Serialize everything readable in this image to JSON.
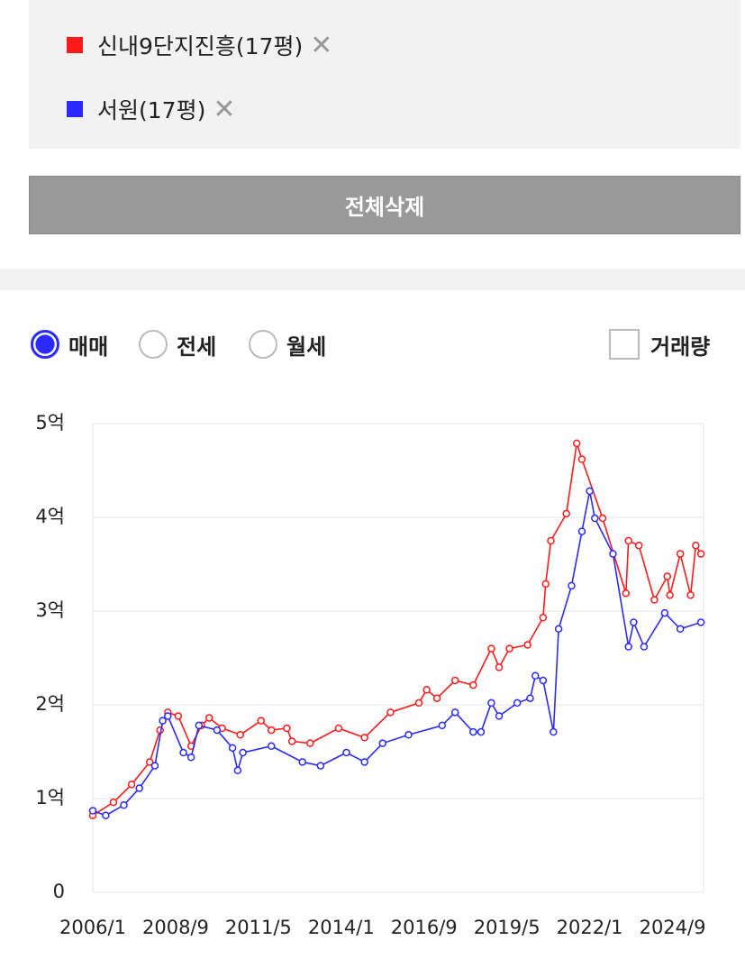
{
  "ui": {
    "clear_all": "전체삭제",
    "tabs": [
      "매매",
      "전세",
      "월세"
    ],
    "volume": "거래량"
  },
  "chart_data": {
    "type": "line",
    "xlim": [
      "2006/1",
      "2025/9"
    ],
    "xticks": [
      "2006/1",
      "2008/9",
      "2011/5",
      "2014/1",
      "2016/9",
      "2019/5",
      "2022/1",
      "2024/9"
    ],
    "ylim": [
      0,
      5
    ],
    "yticks": [
      0,
      {
        "value": 1,
        "label": "1억"
      },
      {
        "value": 2,
        "label": "2억"
      },
      {
        "value": 3,
        "label": "3억"
      },
      {
        "value": 4,
        "label": "4억"
      },
      {
        "value": 5,
        "label": "5억"
      }
    ],
    "grid": true,
    "series": [
      {
        "name": "신내9단지진흥(17평)",
        "color": "#ff1a1a",
        "x": [
          "2006/1",
          "2006/9",
          "2007/4",
          "2007/11",
          "2008/3",
          "2008/6",
          "2008/10",
          "2009/3",
          "2009/7",
          "2009/10",
          "2010/3",
          "2010/10",
          "2011/6",
          "2011/10",
          "2012/4",
          "2012/6",
          "2013/1",
          "2013/12",
          "2014/10",
          "2015/8",
          "2016/7",
          "2016/10",
          "2017/2",
          "2017/9",
          "2018/4",
          "2018/11",
          "2019/2",
          "2019/6",
          "2020/1",
          "2020/7",
          "2020/8",
          "2020/10",
          "2021/4",
          "2021/8",
          "2021/10",
          "2022/6",
          "2023/3",
          "2023/4",
          "2023/8",
          "2024/2",
          "2024/7",
          "2024/8",
          "2024/12",
          "2025/4",
          "2025/6",
          "2025/8"
        ],
        "values": [
          0.82,
          0.96,
          1.15,
          1.39,
          1.73,
          1.92,
          1.88,
          1.56,
          1.78,
          1.86,
          1.75,
          1.68,
          1.83,
          1.73,
          1.75,
          1.61,
          1.59,
          1.75,
          1.65,
          1.92,
          2.02,
          2.16,
          2.07,
          2.26,
          2.21,
          2.6,
          2.4,
          2.6,
          2.64,
          2.93,
          3.29,
          3.75,
          4.04,
          4.79,
          4.62,
          3.99,
          3.19,
          3.75,
          3.7,
          3.12,
          3.37,
          3.17,
          3.61,
          3.17,
          3.7,
          3.61
        ]
      },
      {
        "name": "서원(17평)",
        "color": "#2a2aff",
        "x": [
          "2006/1",
          "2006/6",
          "2007/1",
          "2007/7",
          "2008/1",
          "2008/4",
          "2008/6",
          "2008/12",
          "2009/3",
          "2009/6",
          "2010/1",
          "2010/7",
          "2010/9",
          "2010/11",
          "2011/10",
          "2012/10",
          "2013/5",
          "2014/3",
          "2014/10",
          "2015/5",
          "2016/3",
          "2017/4",
          "2017/9",
          "2018/4",
          "2018/7",
          "2018/11",
          "2019/2",
          "2019/9",
          "2020/2",
          "2020/4",
          "2020/7",
          "2020/11",
          "2021/1",
          "2021/6",
          "2021/10",
          "2022/1",
          "2022/3",
          "2022/10",
          "2023/4",
          "2023/6",
          "2023/10",
          "2024/6",
          "2024/12",
          "2025/8"
        ],
        "values": [
          0.87,
          0.82,
          0.93,
          1.11,
          1.35,
          1.83,
          1.88,
          1.49,
          1.44,
          1.78,
          1.73,
          1.54,
          1.3,
          1.49,
          1.56,
          1.39,
          1.35,
          1.49,
          1.39,
          1.59,
          1.68,
          1.78,
          1.92,
          1.71,
          1.71,
          2.02,
          1.88,
          2.02,
          2.07,
          2.31,
          2.26,
          1.71,
          2.81,
          3.27,
          3.85,
          4.28,
          3.99,
          3.61,
          2.62,
          2.88,
          2.62,
          2.98,
          2.81,
          2.88
        ]
      }
    ]
  }
}
